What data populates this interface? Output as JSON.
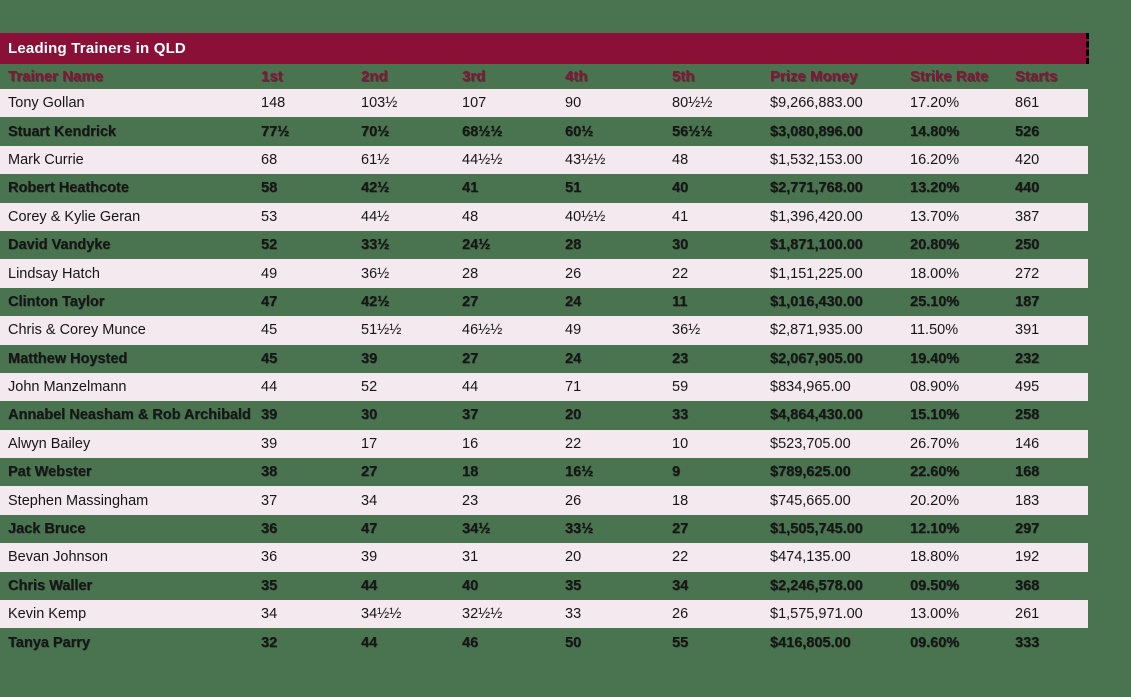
{
  "title": "Leading Trainers in QLD",
  "colors": {
    "background_green": "#4a7350",
    "title_bar_maroon": "#8a1038",
    "title_text": "#ffffff",
    "header_text_maroon": "#8c1139",
    "row_pink": "#f4e9ef",
    "body_text": "#161616"
  },
  "chart_data": {
    "type": "table",
    "title": "Leading Trainers in QLD",
    "columns": [
      "Trainer Name",
      "1st",
      "2nd",
      "3rd",
      "4th",
      "5th",
      "Prize Money",
      "Strike Rate",
      "Starts"
    ],
    "rows": [
      [
        "Tony Gollan",
        "148",
        "103½",
        "107",
        "90",
        "80½½",
        "$9,266,883.00",
        "17.20%",
        "861"
      ],
      [
        "Stuart Kendrick",
        "77½",
        "70½",
        "68½½",
        "60½",
        "56½½",
        "$3,080,896.00",
        "14.80%",
        "526"
      ],
      [
        "Mark Currie",
        "68",
        "61½",
        "44½½",
        "43½½",
        "48",
        "$1,532,153.00",
        "16.20%",
        "420"
      ],
      [
        "Robert Heathcote",
        "58",
        "42½",
        "41",
        "51",
        "40",
        "$2,771,768.00",
        "13.20%",
        "440"
      ],
      [
        "Corey & Kylie Geran",
        "53",
        "44½",
        "48",
        "40½½",
        "41",
        "$1,396,420.00",
        "13.70%",
        "387"
      ],
      [
        "David Vandyke",
        "52",
        "33½",
        "24½",
        "28",
        "30",
        "$1,871,100.00",
        "20.80%",
        "250"
      ],
      [
        "Lindsay Hatch",
        "49",
        "36½",
        "28",
        "26",
        "22",
        "$1,151,225.00",
        "18.00%",
        "272"
      ],
      [
        "Clinton Taylor",
        "47",
        "42½",
        "27",
        "24",
        "11",
        "$1,016,430.00",
        "25.10%",
        "187"
      ],
      [
        "Chris & Corey Munce",
        "45",
        "51½½",
        "46½½",
        "49",
        "36½",
        "$2,871,935.00",
        "11.50%",
        "391"
      ],
      [
        "Matthew Hoysted",
        "45",
        "39",
        "27",
        "24",
        "23",
        "$2,067,905.00",
        "19.40%",
        "232"
      ],
      [
        "John Manzelmann",
        "44",
        "52",
        "44",
        "71",
        "59",
        "$834,965.00",
        "08.90%",
        "495"
      ],
      [
        "Annabel Neasham & Rob Archibald",
        "39",
        "30",
        "37",
        "20",
        "33",
        "$4,864,430.00",
        "15.10%",
        "258"
      ],
      [
        "Alwyn Bailey",
        "39",
        "17",
        "16",
        "22",
        "10",
        "$523,705.00",
        "26.70%",
        "146"
      ],
      [
        "Pat Webster",
        "38",
        "27",
        "18",
        "16½",
        "9",
        "$789,625.00",
        "22.60%",
        "168"
      ],
      [
        "Stephen Massingham",
        "37",
        "34",
        "23",
        "26",
        "18",
        "$745,665.00",
        "20.20%",
        "183"
      ],
      [
        "Jack Bruce",
        "36",
        "47",
        "34½",
        "33½",
        "27",
        "$1,505,745.00",
        "12.10%",
        "297"
      ],
      [
        "Bevan Johnson",
        "36",
        "39",
        "31",
        "20",
        "22",
        "$474,135.00",
        "18.80%",
        "192"
      ],
      [
        "Chris Waller",
        "35",
        "44",
        "40",
        "35",
        "34",
        "$2,246,578.00",
        "09.50%",
        "368"
      ],
      [
        "Kevin Kemp",
        "34",
        "34½½",
        "32½½",
        "33",
        "26",
        "$1,575,971.00",
        "13.00%",
        "261"
      ],
      [
        "Tanya Parry",
        "32",
        "44",
        "46",
        "50",
        "55",
        "$416,805.00",
        "09.60%",
        "333"
      ]
    ]
  }
}
